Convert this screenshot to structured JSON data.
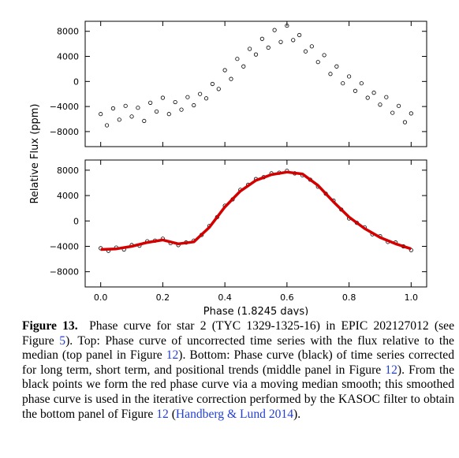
{
  "chart_data": [
    {
      "type": "scatter",
      "ylabel": "Relative Flux (ppm)",
      "xlim": [
        -0.05,
        1.05
      ],
      "xticks": [
        0,
        0.2,
        0.4,
        0.6,
        0.8,
        1
      ],
      "xtick_labels": false,
      "ylim": [
        -10400,
        9600
      ],
      "yticks": [
        {
          "value": -8000,
          "label": "−8000"
        },
        {
          "value": -4000,
          "label": "−4000"
        },
        0,
        4000,
        8000
      ],
      "series": [
        {
          "type": "scatter",
          "color": "#000000",
          "x": [
            0,
            0.02,
            0.04,
            0.06,
            0.08,
            0.1,
            0.12,
            0.14,
            0.16,
            0.18,
            0.2,
            0.22,
            0.24,
            0.26,
            0.28,
            0.3,
            0.32,
            0.34,
            0.36,
            0.38,
            0.4,
            0.42,
            0.44,
            0.46,
            0.48,
            0.5,
            0.52,
            0.54,
            0.56,
            0.58,
            0.6,
            0.62,
            0.64,
            0.66,
            0.68,
            0.7,
            0.72,
            0.74,
            0.76,
            0.78,
            0.8,
            0.82,
            0.84,
            0.86,
            0.88,
            0.9,
            0.92,
            0.94,
            0.96,
            0.98,
            1
          ],
          "values": [
            -5200,
            -7000,
            -4300,
            -6100,
            -3900,
            -5600,
            -4200,
            -6300,
            -3400,
            -4800,
            -2600,
            -5200,
            -3300,
            -4500,
            -2500,
            -3800,
            -2000,
            -2700,
            -400,
            -1200,
            1800,
            400,
            3600,
            2400,
            5200,
            4300,
            6800,
            5400,
            8200,
            6300,
            8900,
            6600,
            7400,
            4800,
            5600,
            3100,
            4200,
            1200,
            2400,
            -300,
            800,
            -1500,
            -300,
            -2600,
            -1800,
            -3700,
            -2500,
            -5000,
            -3900,
            -6500,
            -5100
          ]
        }
      ]
    },
    {
      "type": "scatter",
      "xlabel": "Phase (1.8245 days)",
      "xlim": [
        -0.05,
        1.05
      ],
      "xticks": [
        {
          "value": 0,
          "label": "0.0"
        },
        0.2,
        0.4,
        0.6,
        0.8,
        {
          "value": 1,
          "label": "1.0"
        }
      ],
      "xtick_labels": true,
      "ylim": [
        -10400,
        9600
      ],
      "yticks": [
        {
          "value": -8000,
          "label": "−8000"
        },
        {
          "value": -4000,
          "label": "−4000"
        },
        0,
        4000,
        8000
      ],
      "series": [
        {
          "type": "scatter",
          "color": "#000000",
          "x": [
            0,
            0.025,
            0.05,
            0.075,
            0.1,
            0.125,
            0.15,
            0.175,
            0.2,
            0.225,
            0.25,
            0.275,
            0.3,
            0.325,
            0.35,
            0.375,
            0.4,
            0.425,
            0.45,
            0.475,
            0.5,
            0.525,
            0.55,
            0.575,
            0.6,
            0.625,
            0.65,
            0.675,
            0.7,
            0.725,
            0.75,
            0.775,
            0.8,
            0.825,
            0.85,
            0.875,
            0.9,
            0.925,
            0.95,
            0.975,
            1
          ],
          "values": [
            -4300,
            -4700,
            -4200,
            -4500,
            -3800,
            -3900,
            -3200,
            -3100,
            -2800,
            -3500,
            -3800,
            -3400,
            -3100,
            -2200,
            -800,
            600,
            2400,
            3400,
            4900,
            5700,
            6600,
            6900,
            7500,
            7600,
            7900,
            7500,
            7200,
            6500,
            5400,
            4300,
            3200,
            1800,
            400,
            -300,
            -1000,
            -2100,
            -2400,
            -3300,
            -3400,
            -4000,
            -4600
          ]
        },
        {
          "type": "line",
          "color": "#d40000",
          "x": [
            0,
            0.05,
            0.1,
            0.15,
            0.2,
            0.25,
            0.3,
            0.35,
            0.4,
            0.45,
            0.5,
            0.55,
            0.6,
            0.65,
            0.7,
            0.75,
            0.8,
            0.85,
            0.9,
            0.95,
            1
          ],
          "values": [
            -4500,
            -4400,
            -4000,
            -3400,
            -3000,
            -3600,
            -3300,
            -1000,
            2200,
            4700,
            6400,
            7300,
            7700,
            7400,
            5600,
            3000,
            600,
            -1200,
            -2600,
            -3600,
            -4400
          ]
        }
      ]
    }
  ],
  "caption": {
    "label": "Figure 13.",
    "segments": [
      "Phase curve for star 2 (TYC 1329-1325-16) in EPIC 202127012 (see Figure ",
      "5",
      ").  Top: Phase curve of uncorrected time series with the flux relative to the median (top panel in Figure ",
      "12",
      "). Bottom: Phase curve (black) of time series corrected for long term, short term, and positional trends (middle panel in Figure ",
      "12",
      ").  From the black points we form the red phase curve via a moving median smooth; this smoothed phase curve is used in the iterative correction performed by the KASOC filter to obtain the bottom panel of Figure ",
      "12",
      " (",
      "Handberg & Lund 2014",
      ")."
    ]
  }
}
